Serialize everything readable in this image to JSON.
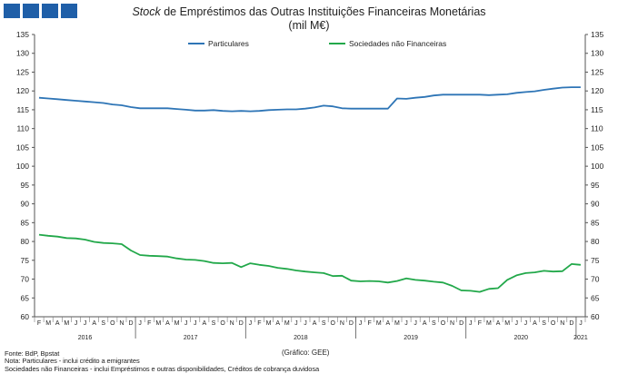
{
  "header": {
    "title_italic": "Stock",
    "title_rest": " de Empréstimos das Outras Instituições Financeiras Monetárias",
    "units": "(mil M€)"
  },
  "footer": {
    "source": "Fonte: BdP, Bpstat",
    "note1": "Nota: Particulares - inclui crédito a emigrantes",
    "note2": "Sociedades não Financeiras - inclui Empréstimos e outras disponibilidades, Créditos de cobrança duvidosa",
    "credit": "(Gráfico: GEE)"
  },
  "colors": {
    "particulares": "#2e75b6",
    "snf": "#22a84a",
    "logo": "#1f5fa8"
  },
  "chart_data": {
    "type": "line",
    "title": "Stock de Empréstimos das Outras Instituições Financeiras Monetárias",
    "ylabel": "(mil M€)",
    "ylim": [
      60,
      135
    ],
    "yticks": [
      60,
      65,
      70,
      75,
      80,
      85,
      90,
      95,
      100,
      105,
      110,
      115,
      120,
      125,
      130,
      135
    ],
    "grid": false,
    "legend_position": "top",
    "month_labels": [
      "F",
      "M",
      "A",
      "M",
      "J",
      "J",
      "A",
      "S",
      "O",
      "N",
      "D",
      "J",
      "F",
      "M",
      "A",
      "M",
      "J",
      "J",
      "A",
      "S",
      "O",
      "N",
      "D",
      "J",
      "F",
      "M",
      "A",
      "M",
      "J",
      "J",
      "A",
      "S",
      "O",
      "N",
      "D",
      "J",
      "F",
      "M",
      "A",
      "M",
      "J",
      "J",
      "A",
      "S",
      "O",
      "N",
      "D",
      "J",
      "F",
      "M",
      "A",
      "M",
      "J",
      "J",
      "A",
      "S",
      "O",
      "N",
      "D",
      "J"
    ],
    "years": [
      {
        "label": "2016",
        "start": 0,
        "end": 10
      },
      {
        "label": "2017",
        "start": 11,
        "end": 22
      },
      {
        "label": "2018",
        "start": 23,
        "end": 34
      },
      {
        "label": "2019",
        "start": 35,
        "end": 46
      },
      {
        "label": "2020",
        "start": 47,
        "end": 58
      },
      {
        "label": "2021",
        "start": 59,
        "end": 59
      }
    ],
    "series": [
      {
        "name": "Particulares",
        "color": "#2e75b6",
        "values": [
          118.2,
          118.0,
          117.8,
          117.6,
          117.4,
          117.2,
          117.0,
          116.8,
          116.4,
          116.2,
          115.7,
          115.4,
          115.4,
          115.4,
          115.4,
          115.2,
          115.0,
          114.8,
          114.8,
          114.9,
          114.7,
          114.6,
          114.7,
          114.6,
          114.7,
          114.9,
          115.0,
          115.1,
          115.1,
          115.3,
          115.6,
          116.1,
          115.9,
          115.4,
          115.3,
          115.3,
          115.3,
          115.3,
          115.3,
          118.0,
          117.9,
          118.2,
          118.4,
          118.8,
          119.0,
          119.0,
          119.0,
          119.0,
          119.0,
          118.9,
          119.0,
          119.1,
          119.5,
          119.7,
          119.9,
          120.3,
          120.6,
          120.9,
          121.0,
          121.0
        ]
      },
      {
        "name": "Sociedades não Financeiras",
        "color": "#22a84a",
        "values": [
          81.8,
          81.5,
          81.3,
          80.9,
          80.8,
          80.5,
          79.9,
          79.6,
          79.5,
          79.3,
          77.6,
          76.4,
          76.2,
          76.1,
          76.0,
          75.5,
          75.2,
          75.1,
          74.8,
          74.3,
          74.2,
          74.3,
          73.2,
          74.2,
          73.8,
          73.5,
          73.0,
          72.7,
          72.3,
          72.0,
          71.8,
          71.6,
          70.8,
          70.9,
          69.6,
          69.4,
          69.5,
          69.4,
          69.1,
          69.5,
          70.2,
          69.8,
          69.6,
          69.3,
          69.1,
          68.2,
          67.0,
          66.9,
          66.6,
          67.4,
          67.6,
          69.8,
          71.0,
          71.6,
          71.8,
          72.2,
          72.0,
          72.1,
          74.0,
          73.8
        ]
      }
    ]
  }
}
